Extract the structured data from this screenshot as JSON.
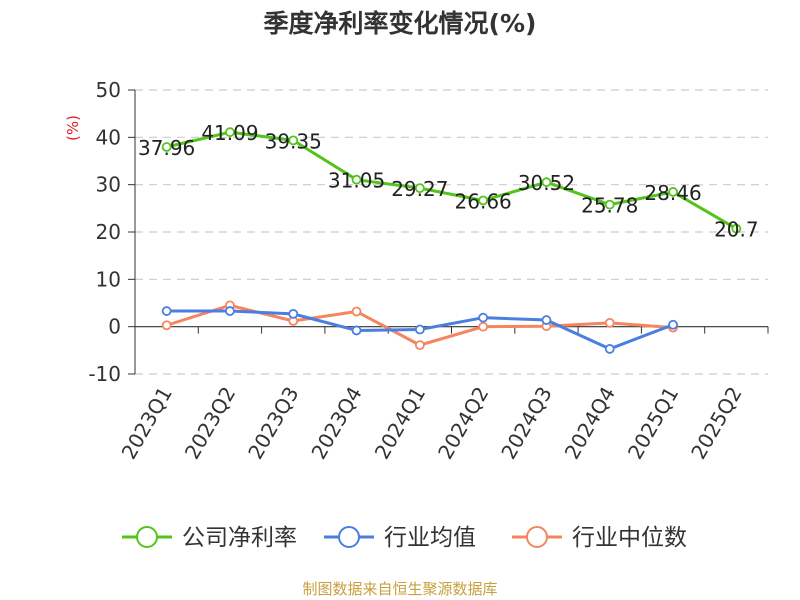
{
  "chart_data": {
    "type": "line",
    "title": "季度净利率变化情况(%)",
    "ylabel": "(%)",
    "ylim": [
      -10,
      50
    ],
    "yticks": [
      50,
      40,
      30,
      20,
      10,
      0,
      -10
    ],
    "grid": true,
    "legend_position": "bottom",
    "categories": [
      "2023Q1",
      "2023Q2",
      "2023Q3",
      "2023Q4",
      "2024Q1",
      "2024Q2",
      "2024Q3",
      "2024Q4",
      "2025Q1",
      "2025Q2"
    ],
    "series": [
      {
        "name": "公司净利率",
        "color": "#52c41a",
        "show_labels": true,
        "values": [
          37.96,
          41.09,
          39.35,
          31.05,
          29.27,
          26.66,
          30.52,
          25.78,
          28.46,
          20.7
        ]
      },
      {
        "name": "行业均值",
        "color": "#4a7fe0",
        "show_labels": false,
        "values": [
          3.3,
          3.3,
          2.7,
          -0.8,
          -0.6,
          1.9,
          1.4,
          -4.7,
          0.4,
          null
        ]
      },
      {
        "name": "行业中位数",
        "color": "#f5855f",
        "show_labels": false,
        "values": [
          0.3,
          4.5,
          1.2,
          3.2,
          -3.9,
          0.0,
          0.1,
          0.8,
          -0.2,
          null
        ]
      }
    ]
  },
  "source": "制图数据来自恒生聚源数据库",
  "colors": {
    "source_text": "#c8a03c",
    "ylabel_text": "#e02020",
    "grid": "#cccccc",
    "axis": "#333333"
  }
}
